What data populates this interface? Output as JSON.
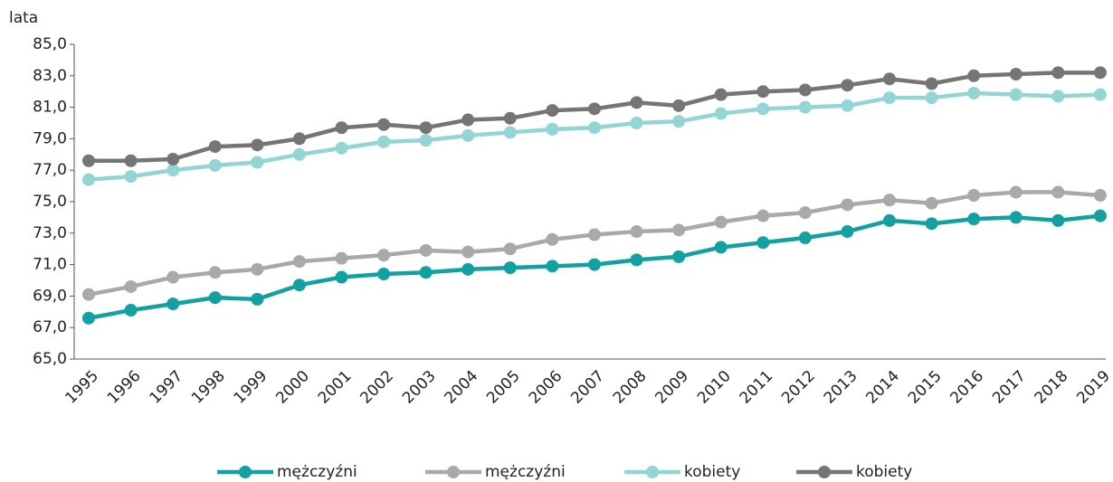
{
  "chart_data": {
    "type": "line",
    "y_label": "lata",
    "categories": [
      "1995",
      "1996",
      "1997",
      "1998",
      "1999",
      "2000",
      "2001",
      "2002",
      "2003",
      "2004",
      "2005",
      "2006",
      "2007",
      "2008",
      "2009",
      "2010",
      "2011",
      "2012",
      "2013",
      "2014",
      "2015",
      "2016",
      "2017",
      "2018",
      "2019"
    ],
    "series": [
      {
        "name": "mężczyźni",
        "color": "#12a0a0",
        "values": [
          67.6,
          68.1,
          68.5,
          68.9,
          68.8,
          69.7,
          70.2,
          70.4,
          70.5,
          70.7,
          70.8,
          70.9,
          71.0,
          71.3,
          71.5,
          72.1,
          72.4,
          72.7,
          73.1,
          73.8,
          73.6,
          73.9,
          74.0,
          73.8,
          74.1
        ]
      },
      {
        "name": "mężczyźni",
        "color": "#a9a9a9",
        "values": [
          69.1,
          69.6,
          70.2,
          70.5,
          70.7,
          71.2,
          71.4,
          71.6,
          71.9,
          71.8,
          72.0,
          72.6,
          72.9,
          73.1,
          73.2,
          73.7,
          74.1,
          74.3,
          74.8,
          75.1,
          74.9,
          75.4,
          75.6,
          75.6,
          75.4
        ]
      },
      {
        "name": "kobiety",
        "color": "#93d5d5",
        "values": [
          76.4,
          76.6,
          77.0,
          77.3,
          77.5,
          78.0,
          78.4,
          78.8,
          78.9,
          79.2,
          79.4,
          79.6,
          79.7,
          80.0,
          80.1,
          80.6,
          80.9,
          81.0,
          81.1,
          81.6,
          81.6,
          81.9,
          81.8,
          81.7,
          81.8
        ]
      },
      {
        "name": "kobiety",
        "color": "#757575",
        "values": [
          77.6,
          77.6,
          77.7,
          78.5,
          78.6,
          79.0,
          79.7,
          79.9,
          79.7,
          80.2,
          80.3,
          80.8,
          80.9,
          81.3,
          81.1,
          81.8,
          82.0,
          82.1,
          82.4,
          82.8,
          82.5,
          83.0,
          83.1,
          83.2,
          83.2
        ]
      }
    ],
    "ylim": [
      65,
      85
    ],
    "yticks": [
      {
        "value": 65,
        "label": "65,0"
      },
      {
        "value": 67,
        "label": "67,0"
      },
      {
        "value": 69,
        "label": "69,0"
      },
      {
        "value": 71,
        "label": "71,0"
      },
      {
        "value": 73,
        "label": "73,0"
      },
      {
        "value": 75,
        "label": "75,0"
      },
      {
        "value": 77,
        "label": "77,0"
      },
      {
        "value": 79,
        "label": "79,0"
      },
      {
        "value": 81,
        "label": "81,0"
      },
      {
        "value": 83,
        "label": "83,0"
      },
      {
        "value": 85,
        "label": "85,0"
      }
    ],
    "legend": "bottom"
  }
}
